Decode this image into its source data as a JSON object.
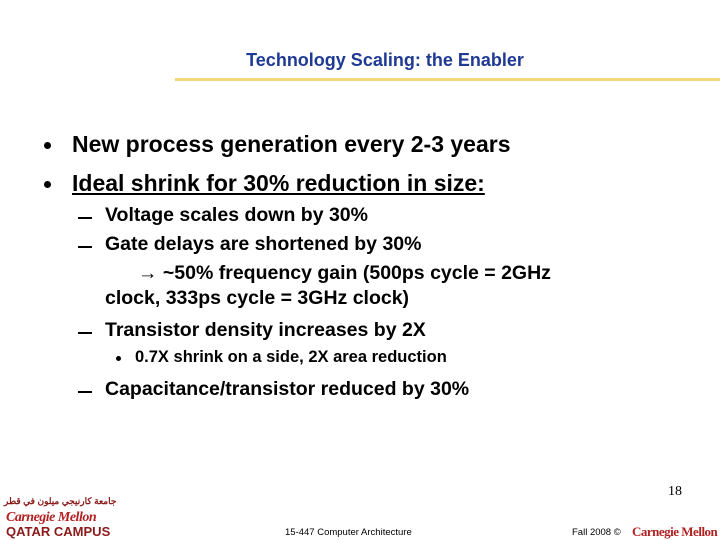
{
  "header": {
    "title": "Technology Scaling: the Enabler"
  },
  "bullets": [
    {
      "text": "New process generation every 2-3 years"
    },
    {
      "text": "Ideal shrink for 30% reduction in size:",
      "items": [
        {
          "text": "Voltage scales down by 30%"
        },
        {
          "text": "Gate delays are shortened by 30%",
          "continuation": [
            "→ ~50% frequency gain (500ps cycle = 2GHz",
            "clock, 333ps cycle = 3GHz clock)"
          ]
        },
        {
          "text": "Transistor density increases by 2X",
          "items": [
            "0.7X shrink on a side, 2X area reduction"
          ]
        },
        {
          "text": "Capacitance/transistor reduced by 30%"
        }
      ]
    }
  ],
  "page_number": "18",
  "footer": {
    "course": "15-447 Computer Architecture",
    "term": "Fall 2008 ©",
    "logo": "Carnegie Mellon",
    "campus_logo": {
      "arabic": "جامعة كارنيجي ميلون في قطر",
      "name": "Carnegie Mellon",
      "campus": "QATAR CAMPUS"
    }
  }
}
